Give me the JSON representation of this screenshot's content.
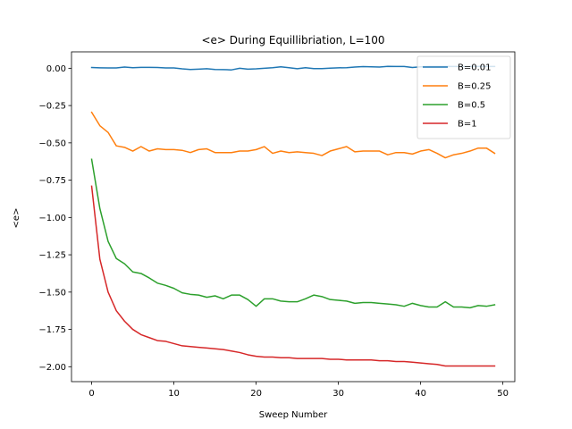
{
  "chart_data": {
    "type": "line",
    "title": "<e> During Equillibriation, L=100",
    "xlabel": "Sweep Number",
    "ylabel": "<e>",
    "xlim": [
      -2.45,
      51.45
    ],
    "ylim": [
      -2.1,
      0.11
    ],
    "xticks": [
      0,
      10,
      20,
      30,
      40,
      50
    ],
    "xtick_labels": [
      "0",
      "10",
      "20",
      "30",
      "40",
      "50"
    ],
    "yticks": [
      0.0,
      -0.25,
      -0.5,
      -0.75,
      -1.0,
      -1.25,
      -1.5,
      -1.75,
      -2.0
    ],
    "ytick_labels": [
      "0.00",
      "−0.25",
      "−0.50",
      "−0.75",
      "−1.00",
      "−1.25",
      "−1.50",
      "−1.75",
      "−2.00"
    ],
    "grid": false,
    "legend_position": "top-right",
    "x": [
      0,
      1,
      2,
      3,
      4,
      5,
      6,
      7,
      8,
      9,
      10,
      11,
      12,
      13,
      14,
      15,
      16,
      17,
      18,
      19,
      20,
      21,
      22,
      23,
      24,
      25,
      26,
      27,
      28,
      29,
      30,
      31,
      32,
      33,
      34,
      35,
      36,
      37,
      38,
      39,
      40,
      41,
      42,
      43,
      44,
      45,
      46,
      47,
      48,
      49
    ],
    "series": [
      {
        "name": "B=0.01",
        "color": "#1f77b4",
        "values": [
          0.005,
          0.003,
          0.002,
          0.002,
          0.008,
          0.004,
          0.006,
          0.006,
          0.005,
          0.002,
          0.002,
          -0.004,
          -0.008,
          -0.006,
          -0.003,
          -0.008,
          -0.009,
          -0.011,
          0.0,
          -0.006,
          -0.004,
          0.0,
          0.004,
          0.01,
          0.004,
          -0.003,
          0.004,
          -0.002,
          -0.002,
          0.001,
          0.003,
          0.004,
          0.008,
          0.011,
          0.01,
          0.008,
          0.013,
          0.012,
          0.012,
          0.005,
          0.01,
          0.012,
          0.012,
          0.012,
          0.012,
          0.012,
          0.012,
          0.012,
          0.012,
          0.012
        ]
      },
      {
        "name": "B=0.25",
        "color": "#ff7f0e",
        "values": [
          -0.295,
          -0.385,
          -0.43,
          -0.52,
          -0.53,
          -0.555,
          -0.525,
          -0.555,
          -0.54,
          -0.545,
          -0.545,
          -0.55,
          -0.565,
          -0.545,
          -0.54,
          -0.565,
          -0.565,
          -0.565,
          -0.555,
          -0.555,
          -0.545,
          -0.525,
          -0.57,
          -0.555,
          -0.565,
          -0.56,
          -0.565,
          -0.57,
          -0.585,
          -0.555,
          -0.54,
          -0.525,
          -0.56,
          -0.555,
          -0.555,
          -0.555,
          -0.58,
          -0.565,
          -0.565,
          -0.575,
          -0.555,
          -0.545,
          -0.57,
          -0.6,
          -0.58,
          -0.57,
          -0.555,
          -0.535,
          -0.535,
          -0.57
        ]
      },
      {
        "name": "B=0.5",
        "color": "#2ca02c",
        "values": [
          -0.61,
          -0.94,
          -1.16,
          -1.275,
          -1.31,
          -1.365,
          -1.375,
          -1.405,
          -1.44,
          -1.455,
          -1.475,
          -1.505,
          -1.515,
          -1.52,
          -1.535,
          -1.525,
          -1.545,
          -1.52,
          -1.52,
          -1.55,
          -1.595,
          -1.545,
          -1.545,
          -1.56,
          -1.565,
          -1.565,
          -1.545,
          -1.52,
          -1.53,
          -1.55,
          -1.555,
          -1.56,
          -1.575,
          -1.57,
          -1.57,
          -1.575,
          -1.58,
          -1.585,
          -1.595,
          -1.575,
          -1.59,
          -1.6,
          -1.6,
          -1.565,
          -1.6,
          -1.6,
          -1.605,
          -1.59,
          -1.595,
          -1.585
        ]
      },
      {
        "name": "B=1",
        "color": "#d62728",
        "values": [
          -0.79,
          -1.28,
          -1.5,
          -1.625,
          -1.695,
          -1.75,
          -1.785,
          -1.805,
          -1.825,
          -1.83,
          -1.845,
          -1.86,
          -1.865,
          -1.87,
          -1.875,
          -1.88,
          -1.885,
          -1.895,
          -1.905,
          -1.92,
          -1.93,
          -1.935,
          -1.935,
          -1.94,
          -1.94,
          -1.945,
          -1.945,
          -1.945,
          -1.945,
          -1.95,
          -1.95,
          -1.955,
          -1.955,
          -1.955,
          -1.955,
          -1.96,
          -1.96,
          -1.965,
          -1.965,
          -1.97,
          -1.975,
          -1.98,
          -1.985,
          -1.995,
          -1.995,
          -1.995,
          -1.995,
          -1.995,
          -1.995,
          -1.995
        ]
      }
    ]
  }
}
